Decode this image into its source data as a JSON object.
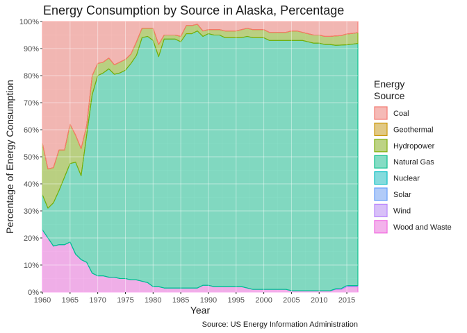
{
  "chart_data": {
    "type": "area",
    "stacked": true,
    "title": "Energy Consumption by Source in Alaska, Percentage",
    "xlabel": "Year",
    "ylabel": "Percentage of Energy Consumption",
    "caption": "Source: US Energy Information Administration",
    "xlim": [
      1960,
      2017
    ],
    "ylim": [
      0,
      100
    ],
    "x_ticks": [
      1960,
      1965,
      1970,
      1975,
      1980,
      1985,
      1990,
      1995,
      2000,
      2005,
      2010,
      2015
    ],
    "y_ticks": [
      {
        "value": 0,
        "label": "0%"
      },
      {
        "value": 10,
        "label": "10%"
      },
      {
        "value": 20,
        "label": "20%"
      },
      {
        "value": 30,
        "label": "30%"
      },
      {
        "value": 40,
        "label": "40%"
      },
      {
        "value": 50,
        "label": "50%"
      },
      {
        "value": 60,
        "label": "60%"
      },
      {
        "value": 70,
        "label": "70%"
      },
      {
        "value": 80,
        "label": "80%"
      },
      {
        "value": 90,
        "label": "90%"
      },
      {
        "value": 100,
        "label": "100%"
      }
    ],
    "grid": true,
    "legend_placement": "right",
    "legend_title": [
      "Energy",
      "Source"
    ],
    "x": [
      1960,
      1961,
      1962,
      1963,
      1964,
      1965,
      1966,
      1967,
      1968,
      1969,
      1970,
      1971,
      1972,
      1973,
      1974,
      1975,
      1976,
      1977,
      1978,
      1979,
      1980,
      1981,
      1982,
      1983,
      1984,
      1985,
      1986,
      1987,
      1988,
      1989,
      1990,
      1991,
      1992,
      1993,
      1994,
      1995,
      1996,
      1997,
      1998,
      1999,
      2000,
      2001,
      2002,
      2003,
      2004,
      2005,
      2006,
      2007,
      2008,
      2009,
      2010,
      2011,
      2012,
      2013,
      2014,
      2015,
      2016,
      2017
    ],
    "series": [
      {
        "name": "Wood and Waste",
        "color": "#F564E3",
        "values": [
          23,
          20,
          17,
          17.5,
          17.5,
          18.5,
          14,
          12,
          11,
          7,
          6,
          6,
          5.5,
          5.5,
          5,
          5,
          4.5,
          4.5,
          4,
          3.5,
          2,
          2,
          1.5,
          1.5,
          1.5,
          1.5,
          1.5,
          1.5,
          1.5,
          2.5,
          2.5,
          2,
          2,
          2,
          2,
          2,
          2,
          1.5,
          1,
          1,
          1,
          1,
          1,
          1,
          1,
          0.5,
          0.5,
          0.5,
          0.5,
          0.5,
          0.5,
          0.5,
          0.5,
          1,
          1,
          2,
          2,
          2
        ]
      },
      {
        "name": "Wind",
        "color": "#B983FF",
        "values": [
          0,
          0,
          0,
          0,
          0,
          0,
          0,
          0,
          0,
          0,
          0,
          0,
          0,
          0,
          0,
          0,
          0,
          0,
          0,
          0,
          0,
          0,
          0,
          0,
          0,
          0,
          0,
          0,
          0,
          0,
          0,
          0,
          0,
          0,
          0,
          0,
          0,
          0,
          0,
          0,
          0,
          0,
          0,
          0,
          0,
          0,
          0,
          0,
          0,
          0,
          0,
          0,
          0,
          0.2,
          0.3,
          0.4,
          0.4,
          0.4
        ]
      },
      {
        "name": "Solar",
        "color": "#619CFF",
        "values": [
          0,
          0,
          0,
          0,
          0,
          0,
          0,
          0,
          0,
          0,
          0,
          0,
          0,
          0,
          0,
          0,
          0,
          0,
          0,
          0,
          0,
          0,
          0,
          0,
          0,
          0,
          0,
          0,
          0,
          0,
          0,
          0,
          0,
          0,
          0,
          0,
          0,
          0,
          0,
          0,
          0,
          0,
          0,
          0,
          0,
          0,
          0,
          0,
          0,
          0,
          0,
          0,
          0,
          0,
          0,
          0,
          0,
          0
        ]
      },
      {
        "name": "Nuclear",
        "color": "#00BFC4",
        "values": [
          0,
          0,
          0,
          0,
          0,
          0,
          0,
          0,
          0,
          0,
          0,
          0,
          0,
          0,
          0,
          0,
          0,
          0,
          0,
          0,
          0,
          0,
          0,
          0,
          0,
          0,
          0,
          0,
          0,
          0,
          0,
          0,
          0,
          0,
          0,
          0,
          0,
          0,
          0,
          0,
          0,
          0,
          0,
          0,
          0,
          0,
          0,
          0,
          0,
          0,
          0,
          0,
          0,
          0,
          0,
          0,
          0,
          0
        ]
      },
      {
        "name": "Natural Gas",
        "color": "#00C08B",
        "values": [
          13,
          11,
          16,
          20,
          25,
          29,
          34,
          31,
          47,
          66,
          74,
          75,
          77,
          75,
          76,
          77,
          80,
          83,
          90,
          91,
          91,
          85,
          92,
          92,
          92,
          91,
          94,
          94,
          95,
          92,
          93,
          93,
          93,
          92,
          92,
          92,
          92,
          93,
          93,
          93,
          93,
          92,
          92,
          92,
          92,
          92.5,
          92.5,
          92.5,
          92,
          91.5,
          91.5,
          91,
          91,
          90,
          90,
          89,
          89.2,
          89.5
        ]
      },
      {
        "name": "Hydropower",
        "color": "#7CAE00",
        "values": [
          19,
          14.5,
          13,
          15,
          10,
          14.5,
          10,
          10,
          3.5,
          7,
          4.5,
          4,
          4,
          3.5,
          4,
          4,
          3.5,
          5,
          3.5,
          3,
          4.5,
          4.5,
          1.5,
          1.5,
          1.5,
          2,
          3,
          3,
          2.5,
          2,
          1.5,
          2,
          2,
          2.5,
          2.5,
          2.5,
          3,
          3,
          3,
          3,
          3,
          3,
          3,
          3,
          3,
          3.5,
          3.5,
          3,
          3,
          3,
          3,
          3,
          3,
          3.5,
          3.5,
          4,
          4,
          4
        ]
      },
      {
        "name": "Geothermal",
        "color": "#CD9600",
        "values": [
          0,
          0,
          0,
          0,
          0,
          0,
          0,
          0,
          0,
          0,
          0,
          0,
          0,
          0,
          0,
          0,
          0,
          0,
          0,
          0,
          0,
          0,
          0,
          0,
          0,
          0,
          0,
          0,
          0,
          0,
          0,
          0,
          0,
          0,
          0,
          0,
          0,
          0,
          0,
          0,
          0,
          0,
          0,
          0,
          0,
          0,
          0,
          0,
          0,
          0,
          0,
          0,
          0,
          0,
          0,
          0,
          0,
          0
        ]
      },
      {
        "name": "Coal",
        "color": "#F8766D",
        "values": [
          45,
          54.5,
          54,
          47.5,
          47.5,
          38,
          42,
          47,
          38.5,
          20,
          15.5,
          15,
          13.5,
          16,
          15,
          14,
          12,
          7.5,
          2.5,
          2.5,
          2.5,
          8.5,
          5,
          5,
          5,
          5.5,
          1.5,
          1.5,
          1,
          3.5,
          3,
          3,
          3,
          3.5,
          3.5,
          3.5,
          3,
          2.5,
          3,
          3,
          3,
          4,
          4,
          4,
          4,
          3.5,
          3.5,
          4,
          4.5,
          5,
          5,
          5.5,
          5.5,
          5.3,
          5.2,
          4.6,
          4.4,
          4.1
        ]
      }
    ],
    "legend_order": [
      "Coal",
      "Geothermal",
      "Hydropower",
      "Natural Gas",
      "Nuclear",
      "Solar",
      "Wind",
      "Wood and Waste"
    ]
  }
}
